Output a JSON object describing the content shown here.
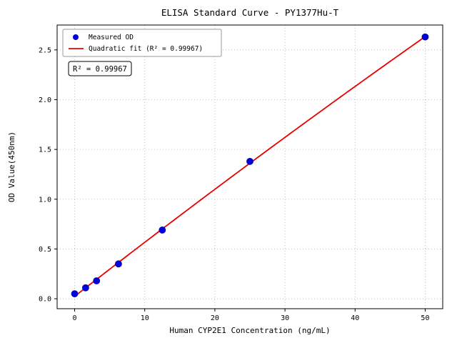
{
  "figure": {
    "title": "ELISA Standard Curve - PY1377Hu-T",
    "annotation": "R² = 0.99967"
  },
  "chart_data": {
    "type": "scatter",
    "title": "ELISA Standard Curve - PY1377Hu-T",
    "xlabel": "Human CYP2E1 Concentration (ng/mL)",
    "ylabel": "OD Value(450nm)",
    "x": [
      0,
      1.5625,
      3.125,
      6.25,
      12.5,
      25,
      50
    ],
    "y": [
      0.05,
      0.11,
      0.18,
      0.35,
      0.69,
      1.38,
      2.63
    ],
    "xticks": [
      0,
      10,
      20,
      30,
      40,
      50
    ],
    "yticks": [
      0.0,
      0.5,
      1.0,
      1.5,
      2.0,
      2.5
    ],
    "xlim": [
      -2.5,
      52.5
    ],
    "ylim": [
      -0.1,
      2.75
    ],
    "grid": true,
    "annotation": "R² = 0.99967",
    "legend": {
      "position": "upper-left",
      "entries": [
        {
          "label": "Measured OD",
          "marker": "dot",
          "color": "#0000dd"
        },
        {
          "label": "Quadratic fit (R² = 0.99967)",
          "marker": "line",
          "color": "#e80000"
        }
      ]
    },
    "series": [
      {
        "name": "Measured OD",
        "type": "scatter",
        "color": "#0000dd"
      },
      {
        "name": "Quadratic fit",
        "type": "quadratic-fit",
        "color": "#e80000"
      }
    ],
    "colors": {
      "points": "#0000dd",
      "fit_line": "#e80000",
      "grid": "#b0b0b0",
      "spine": "#000000",
      "background": "#ffffff"
    }
  }
}
